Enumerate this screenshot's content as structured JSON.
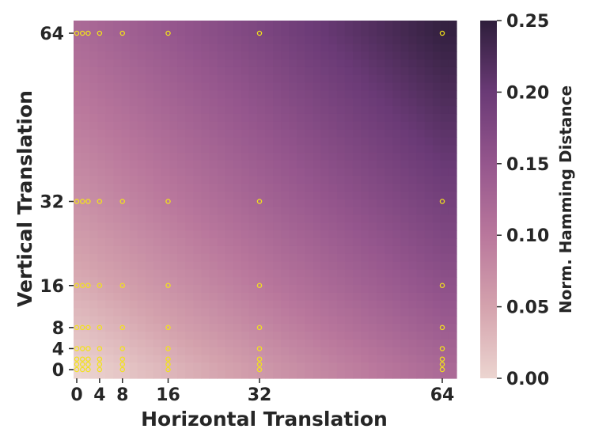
{
  "chart_data": {
    "type": "heatmap",
    "xlabel": "Horizontal Translation",
    "ylabel": "Vertical Translation",
    "x_ticks": [
      0,
      4,
      8,
      16,
      32,
      64
    ],
    "y_ticks": [
      0,
      4,
      8,
      16,
      32,
      64
    ],
    "xlim": [
      0,
      64
    ],
    "ylim": [
      0,
      64
    ],
    "colorbar": {
      "label": "Norm. Hamming Distance",
      "range": [
        0.0,
        0.25
      ],
      "ticks": [
        "0.00",
        "0.05",
        "0.10",
        "0.15",
        "0.20",
        "0.25"
      ],
      "colors": [
        "#ecd5d0",
        "#d4a2ad",
        "#b9779c",
        "#95568d",
        "#6a3a76",
        "#2e1e3b"
      ]
    },
    "sample_x": [
      0,
      1,
      2,
      4,
      8,
      16,
      32,
      64
    ],
    "sample_y": [
      0,
      1,
      2,
      4,
      8,
      16,
      32,
      64
    ],
    "marker_color": "#f2e21b",
    "values": [
      [
        0.0,
        0.002,
        0.004,
        0.008,
        0.015,
        0.03,
        0.06,
        0.12
      ],
      [
        0.003,
        0.004,
        0.006,
        0.01,
        0.017,
        0.032,
        0.062,
        0.122
      ],
      [
        0.006,
        0.007,
        0.009,
        0.012,
        0.02,
        0.035,
        0.065,
        0.125
      ],
      [
        0.012,
        0.013,
        0.014,
        0.018,
        0.025,
        0.04,
        0.07,
        0.13
      ],
      [
        0.022,
        0.023,
        0.024,
        0.028,
        0.035,
        0.05,
        0.08,
        0.14
      ],
      [
        0.04,
        0.041,
        0.042,
        0.046,
        0.053,
        0.068,
        0.098,
        0.158
      ],
      [
        0.07,
        0.071,
        0.072,
        0.076,
        0.083,
        0.098,
        0.128,
        0.188
      ],
      [
        0.12,
        0.121,
        0.122,
        0.126,
        0.133,
        0.148,
        0.178,
        0.245
      ]
    ]
  }
}
